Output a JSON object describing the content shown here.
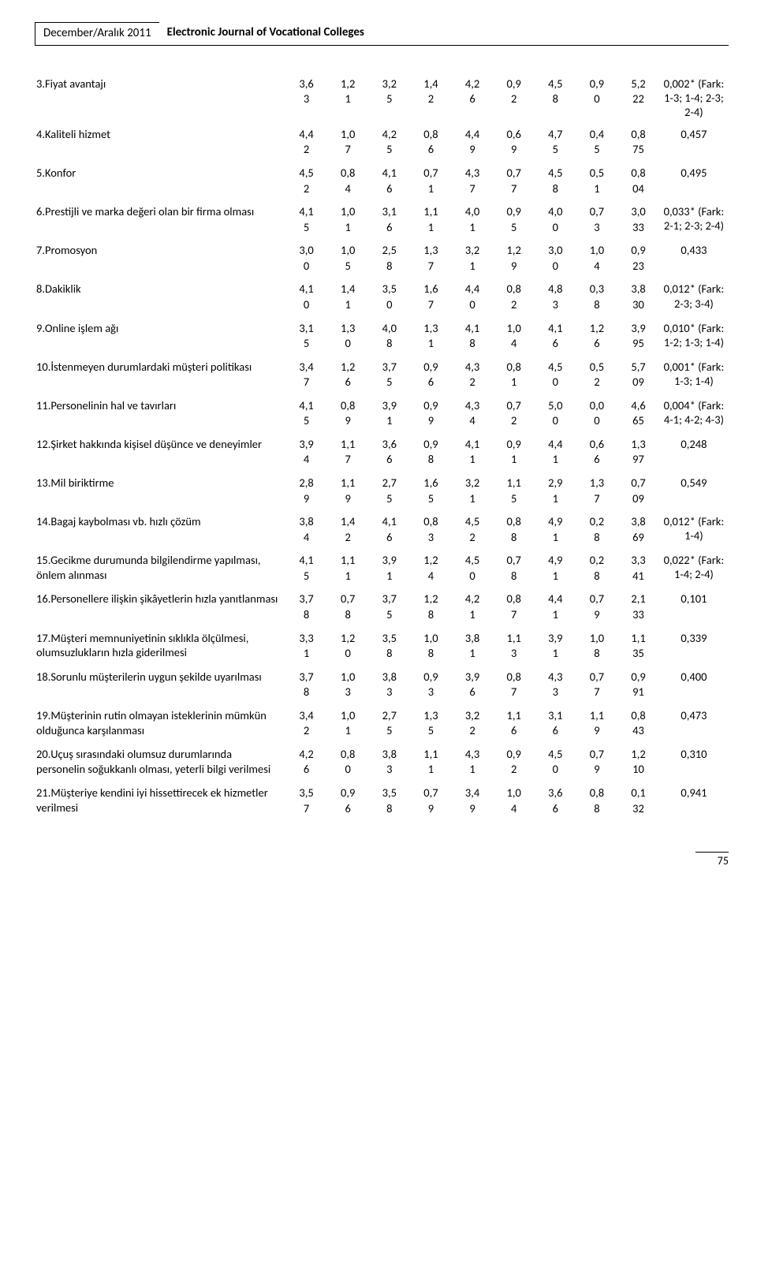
{
  "header": {
    "left": "December/Aralık 2011",
    "right": "Electronic Journal of Vocational Colleges"
  },
  "page_number": "75",
  "rows": [
    {
      "label": "3.Fiyat avantajı",
      "c": [
        [
          "3,6",
          "3"
        ],
        [
          "1,2",
          "1"
        ],
        [
          "3,2",
          "5"
        ],
        [
          "1,4",
          "2"
        ],
        [
          "4,2",
          "6"
        ],
        [
          "0,9",
          "2"
        ],
        [
          "4,5",
          "8"
        ],
        [
          "0,9",
          "0"
        ],
        [
          "5,2",
          "22"
        ]
      ],
      "last": "0,002* (Fark: 1-3; 1-4; 2-3; 2-4)"
    },
    {
      "label": "4.Kaliteli hizmet",
      "c": [
        [
          "4,4",
          "2"
        ],
        [
          "1,0",
          "7"
        ],
        [
          "4,2",
          "5"
        ],
        [
          "0,8",
          "6"
        ],
        [
          "4,4",
          "9"
        ],
        [
          "0,6",
          "9"
        ],
        [
          "4,7",
          "5"
        ],
        [
          "0,4",
          "5"
        ],
        [
          "0,8",
          "75"
        ]
      ],
      "last": "0,457"
    },
    {
      "label": "5.Konfor",
      "c": [
        [
          "4,5",
          "2"
        ],
        [
          "0,8",
          "4"
        ],
        [
          "4,1",
          "6"
        ],
        [
          "0,7",
          "1"
        ],
        [
          "4,3",
          "7"
        ],
        [
          "0,7",
          "7"
        ],
        [
          "4,5",
          "8"
        ],
        [
          "0,5",
          "1"
        ],
        [
          "0,8",
          "04"
        ]
      ],
      "last": "0,495"
    },
    {
      "label": "6.Prestijli ve marka değeri olan bir firma olması",
      "c": [
        [
          "4,1",
          "5"
        ],
        [
          "1,0",
          "1"
        ],
        [
          "3,1",
          "6"
        ],
        [
          "1,1",
          "1"
        ],
        [
          "4,0",
          "1"
        ],
        [
          "0,9",
          "5"
        ],
        [
          "4,0",
          "0"
        ],
        [
          "0,7",
          "3"
        ],
        [
          "3,0",
          "33"
        ]
      ],
      "last": "0,033* (Fark: 2-1; 2-3; 2-4)"
    },
    {
      "label": "7.Promosyon",
      "c": [
        [
          "3,0",
          "0"
        ],
        [
          "1,0",
          "5"
        ],
        [
          "2,5",
          "8"
        ],
        [
          "1,3",
          "7"
        ],
        [
          "3,2",
          "1"
        ],
        [
          "1,2",
          "9"
        ],
        [
          "3,0",
          "0"
        ],
        [
          "1,0",
          "4"
        ],
        [
          "0,9",
          "23"
        ]
      ],
      "last": "0,433"
    },
    {
      "label": "8.Dakiklik",
      "c": [
        [
          "4,1",
          "0"
        ],
        [
          "1,4",
          "1"
        ],
        [
          "3,5",
          "0"
        ],
        [
          "1,6",
          "7"
        ],
        [
          "4,4",
          "0"
        ],
        [
          "0,8",
          "2"
        ],
        [
          "4,8",
          "3"
        ],
        [
          "0,3",
          "8"
        ],
        [
          "3,8",
          "30"
        ]
      ],
      "last": "0,012* (Fark: 2-3; 3-4)"
    },
    {
      "label": "9.Online işlem ağı",
      "c": [
        [
          "3,1",
          "5"
        ],
        [
          "1,3",
          "0"
        ],
        [
          "4,0",
          "8"
        ],
        [
          "1,3",
          "1"
        ],
        [
          "4,1",
          "8"
        ],
        [
          "1,0",
          "4"
        ],
        [
          "4,1",
          "6"
        ],
        [
          "1,2",
          "6"
        ],
        [
          "3,9",
          "95"
        ]
      ],
      "last": "0,010* (Fark: 1-2; 1-3; 1-4)"
    },
    {
      "label": "10.İstenmeyen durumlardaki müşteri politikası",
      "c": [
        [
          "3,4",
          "7"
        ],
        [
          "1,2",
          "6"
        ],
        [
          "3,7",
          "5"
        ],
        [
          "0,9",
          "6"
        ],
        [
          "4,3",
          "2"
        ],
        [
          "0,8",
          "1"
        ],
        [
          "4,5",
          "0"
        ],
        [
          "0,5",
          "2"
        ],
        [
          "5,7",
          "09"
        ]
      ],
      "last": "0,001* (Fark: 1-3; 1-4)"
    },
    {
      "label": "11.Personelinin hal ve tavırları",
      "c": [
        [
          "4,1",
          "5"
        ],
        [
          "0,8",
          "9"
        ],
        [
          "3,9",
          "1"
        ],
        [
          "0,9",
          "9"
        ],
        [
          "4,3",
          "4"
        ],
        [
          "0,7",
          "2"
        ],
        [
          "5,0",
          "0"
        ],
        [
          "0,0",
          "0"
        ],
        [
          "4,6",
          "65"
        ]
      ],
      "last": "0,004* (Fark: 4-1; 4-2; 4-3)"
    },
    {
      "label": "12.Şirket hakkında kişisel düşünce ve deneyimler",
      "c": [
        [
          "3,9",
          "4"
        ],
        [
          "1,1",
          "7"
        ],
        [
          "3,6",
          "6"
        ],
        [
          "0,9",
          "8"
        ],
        [
          "4,1",
          "1"
        ],
        [
          "0,9",
          "1"
        ],
        [
          "4,4",
          "1"
        ],
        [
          "0,6",
          "6"
        ],
        [
          "1,3",
          "97"
        ]
      ],
      "last": "0,248"
    },
    {
      "label": "13.Mil biriktirme",
      "c": [
        [
          "2,8",
          "9"
        ],
        [
          "1,1",
          "9"
        ],
        [
          "2,7",
          "5"
        ],
        [
          "1,6",
          "5"
        ],
        [
          "3,2",
          "1"
        ],
        [
          "1,1",
          "5"
        ],
        [
          "2,9",
          "1"
        ],
        [
          "1,3",
          "7"
        ],
        [
          "0,7",
          "09"
        ]
      ],
      "last": "0,549"
    },
    {
      "label": "14.Bagaj kaybolması vb. hızlı çözüm",
      "c": [
        [
          "3,8",
          "4"
        ],
        [
          "1,4",
          "2"
        ],
        [
          "4,1",
          "6"
        ],
        [
          "0,8",
          "3"
        ],
        [
          "4,5",
          "2"
        ],
        [
          "0,8",
          "8"
        ],
        [
          "4,9",
          "1"
        ],
        [
          "0,2",
          "8"
        ],
        [
          "3,8",
          "69"
        ]
      ],
      "last": "0,012* (Fark: 1-4)"
    },
    {
      "label": "15.Gecikme durumunda bilgilendirme yapılması, önlem alınması",
      "c": [
        [
          "4,1",
          "5"
        ],
        [
          "1,1",
          "1"
        ],
        [
          "3,9",
          "1"
        ],
        [
          "1,2",
          "4"
        ],
        [
          "4,5",
          "0"
        ],
        [
          "0,7",
          "8"
        ],
        [
          "4,9",
          "1"
        ],
        [
          "0,2",
          "8"
        ],
        [
          "3,3",
          "41"
        ]
      ],
      "last": "0,022* (Fark: 1-4; 2-4)"
    },
    {
      "label": "16.Personellere ilişkin şikâyetlerin hızla yanıtlanması",
      "c": [
        [
          "3,7",
          "8"
        ],
        [
          "0,7",
          "8"
        ],
        [
          "3,7",
          "5"
        ],
        [
          "1,2",
          "8"
        ],
        [
          "4,2",
          "1"
        ],
        [
          "0,8",
          "7"
        ],
        [
          "4,4",
          "1"
        ],
        [
          "0,7",
          "9"
        ],
        [
          "2,1",
          "33"
        ]
      ],
      "last": "0,101"
    },
    {
      "label": "17.Müşteri memnuniyetinin sıklıkla ölçülmesi, olumsuzlukların hızla giderilmesi",
      "c": [
        [
          "3,3",
          "1"
        ],
        [
          "1,2",
          "0"
        ],
        [
          "3,5",
          "8"
        ],
        [
          "1,0",
          "8"
        ],
        [
          "3,8",
          "1"
        ],
        [
          "1,1",
          "3"
        ],
        [
          "3,9",
          "1"
        ],
        [
          "1,0",
          "8"
        ],
        [
          "1,1",
          "35"
        ]
      ],
      "last": "0,339"
    },
    {
      "label": "18.Sorunlu müşterilerin uygun şekilde uyarılması",
      "c": [
        [
          "3,7",
          "8"
        ],
        [
          "1,0",
          "3"
        ],
        [
          "3,8",
          "3"
        ],
        [
          "0,9",
          "3"
        ],
        [
          "3,9",
          "6"
        ],
        [
          "0,8",
          "7"
        ],
        [
          "4,3",
          "3"
        ],
        [
          "0,7",
          "7"
        ],
        [
          "0,9",
          "91"
        ]
      ],
      "last": "0,400"
    },
    {
      "label": "19.Müşterinin rutin olmayan isteklerinin mümkün olduğunca karşılanması",
      "c": [
        [
          "3,4",
          "2"
        ],
        [
          "1,0",
          "1"
        ],
        [
          "2,7",
          "5"
        ],
        [
          "1,3",
          "5"
        ],
        [
          "3,2",
          "2"
        ],
        [
          "1,1",
          "6"
        ],
        [
          "3,1",
          "6"
        ],
        [
          "1,1",
          "9"
        ],
        [
          "0,8",
          "43"
        ]
      ],
      "last": "0,473"
    },
    {
      "label": "20.Uçuş sırasındaki olumsuz durumlarında personelin soğukkanlı olması, yeterli bilgi verilmesi",
      "c": [
        [
          "4,2",
          "6"
        ],
        [
          "0,8",
          "0"
        ],
        [
          "3,8",
          "3"
        ],
        [
          "1,1",
          "1"
        ],
        [
          "4,3",
          "1"
        ],
        [
          "0,9",
          "2"
        ],
        [
          "4,5",
          "0"
        ],
        [
          "0,7",
          "9"
        ],
        [
          "1,2",
          "10"
        ]
      ],
      "last": "0,310"
    },
    {
      "label": "21.Müşteriye kendini iyi hissettirecek ek hizmetler verilmesi",
      "c": [
        [
          "3,5",
          "7"
        ],
        [
          "0,9",
          "6"
        ],
        [
          "3,5",
          "8"
        ],
        [
          "0,7",
          "9"
        ],
        [
          "3,4",
          "9"
        ],
        [
          "1,0",
          "4"
        ],
        [
          "3,6",
          "6"
        ],
        [
          "0,8",
          "8"
        ],
        [
          "0,1",
          "32"
        ]
      ],
      "last": "0,941"
    }
  ]
}
